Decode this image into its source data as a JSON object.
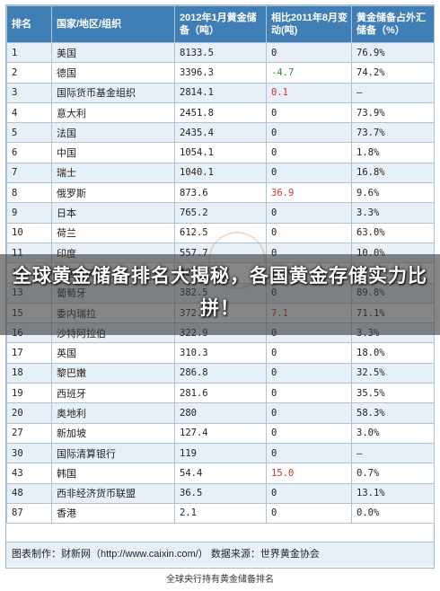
{
  "table": {
    "headers": [
      "排名",
      "国家/地区/组织",
      "2012年1月黄金储备（吨）",
      "相比2011年8月变动(吨)",
      "黄金储备占外汇储备（%）"
    ],
    "rows": [
      {
        "rank": "1",
        "name": "美国",
        "reserve": "8133.5",
        "change": "0",
        "share": "76.9%"
      },
      {
        "rank": "2",
        "name": "德国",
        "reserve": "3396.3",
        "change": "-4.7",
        "share": "74.2%"
      },
      {
        "rank": "3",
        "name": "国际货币基金组织",
        "reserve": "2814.1",
        "change": "0.1",
        "share": "—"
      },
      {
        "rank": "4",
        "name": "意大利",
        "reserve": "2451.8",
        "change": "0",
        "share": "73.9%"
      },
      {
        "rank": "5",
        "name": "法国",
        "reserve": "2435.4",
        "change": "0",
        "share": "73.7%"
      },
      {
        "rank": "6",
        "name": "中国",
        "reserve": "1054.1",
        "change": "0",
        "share": "1.8%"
      },
      {
        "rank": "7",
        "name": "瑞士",
        "reserve": "1040.1",
        "change": "0",
        "share": "16.8%"
      },
      {
        "rank": "8",
        "name": "俄罗斯",
        "reserve": "873.6",
        "change": "36.9",
        "share": "9.6%"
      },
      {
        "rank": "9",
        "name": "日本",
        "reserve": "765.2",
        "change": "0",
        "share": "3.3%"
      },
      {
        "rank": "10",
        "name": "荷兰",
        "reserve": "612.5",
        "change": "0",
        "share": "63.0%"
      },
      {
        "rank": "11",
        "name": "印度",
        "reserve": "557.7",
        "change": "0",
        "share": "10.0%"
      },
      {
        "rank": "12",
        "name": "中国台湾",
        "reserve": "422.4",
        "change": "-1.6",
        "share": "6.1%"
      },
      {
        "rank": "13",
        "name": "葡萄牙",
        "reserve": "382.5",
        "change": "0",
        "share": "89.8%"
      },
      {
        "rank": "15",
        "name": "委内瑞拉",
        "reserve": "372.9",
        "change": "7.1",
        "share": "71.1%"
      },
      {
        "rank": "16",
        "name": "沙特阿拉伯",
        "reserve": "322.9",
        "change": "0",
        "share": "3.3%"
      },
      {
        "rank": "17",
        "name": "英国",
        "reserve": "310.3",
        "change": "0",
        "share": "18.0%"
      },
      {
        "rank": "18",
        "name": "黎巴嫩",
        "reserve": "286.8",
        "change": "0",
        "share": "32.5%"
      },
      {
        "rank": "19",
        "name": "西班牙",
        "reserve": "281.6",
        "change": "0",
        "share": "35.5%"
      },
      {
        "rank": "20",
        "name": "奥地利",
        "reserve": "280",
        "change": "0",
        "share": "58.3%"
      },
      {
        "rank": "27",
        "name": "新加坡",
        "reserve": "127.4",
        "change": "0",
        "share": "3.0%"
      },
      {
        "rank": "30",
        "name": "国际清算银行",
        "reserve": "119",
        "change": "0",
        "share": "—"
      },
      {
        "rank": "43",
        "name": "韩国",
        "reserve": "54.4",
        "change": "15.0",
        "share": "0.7%"
      },
      {
        "rank": "48",
        "name": "西非经济货币联盟",
        "reserve": "36.5",
        "change": "0",
        "share": "13.1%"
      },
      {
        "rank": "87",
        "name": "香港",
        "reserve": "2.1",
        "change": "0",
        "share": "0.0%"
      }
    ],
    "credit": "图表制作：财新网（http://www.caixin.com/）  数据来源：世界黄金协会"
  },
  "caption": "全球央行持有黄金储备排名",
  "headline": "全球黄金储备排名大揭秘，各国黄金存储实力比拼！",
  "colors": {
    "header_bg": "#3f7fb5",
    "row_alt": "#e8f0f7",
    "negative": "#2e8b3e",
    "positive": "#cc3333"
  }
}
